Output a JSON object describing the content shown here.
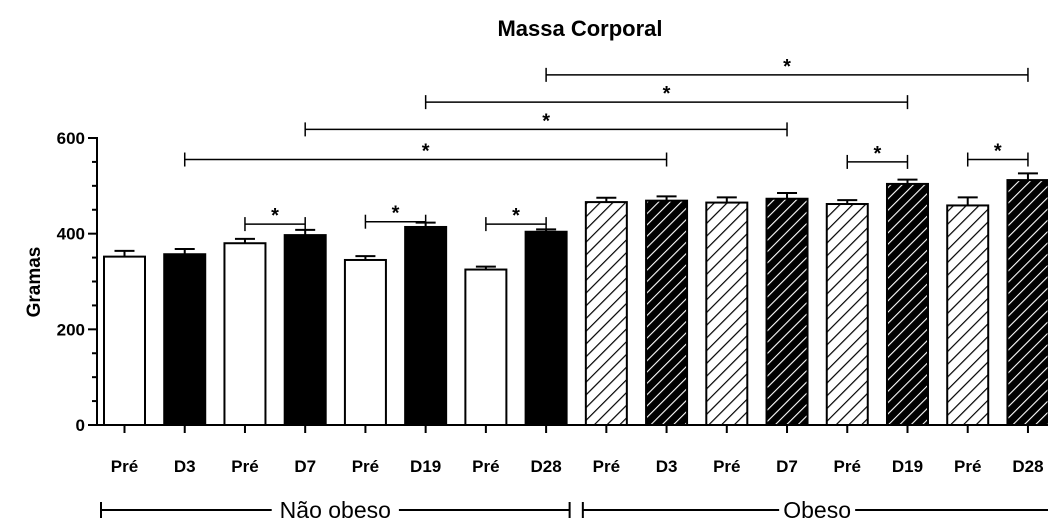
{
  "chart_data": {
    "type": "bar",
    "title": "Massa Corporal",
    "ylabel": "Gramas",
    "xlabel": "",
    "ylim": [
      0,
      600
    ],
    "yticks": [
      0,
      200,
      400,
      600
    ],
    "grid": false,
    "categories": [
      "Pré",
      "D3",
      "Pré",
      "D7",
      "Pré",
      "D19",
      "Pré",
      "D28",
      "Pré",
      "D3",
      "Pré",
      "D7",
      "Pré",
      "D19",
      "Pré",
      "D28"
    ],
    "values": [
      352,
      357,
      380,
      397,
      345,
      414,
      325,
      404,
      466,
      469,
      465,
      473,
      462,
      504,
      459,
      512
    ],
    "errors": [
      12,
      11,
      9,
      11,
      8,
      9,
      6,
      5,
      9,
      9,
      11,
      12,
      8,
      9,
      17,
      14
    ],
    "fill": [
      "open",
      "solid",
      "open",
      "solid",
      "open",
      "solid",
      "open",
      "solid",
      "hatched",
      "hatched-dark",
      "hatched",
      "hatched-dark",
      "hatched",
      "hatched-dark",
      "hatched",
      "hatched-dark"
    ],
    "groups": [
      {
        "label": "Não obeso",
        "from": 0,
        "to": 7
      },
      {
        "label": "Obeso",
        "from": 8,
        "to": 15
      }
    ],
    "significance": [
      {
        "from": 2,
        "to": 3,
        "label": "*",
        "level": 420
      },
      {
        "from": 4,
        "to": 5,
        "label": "*",
        "level": 425
      },
      {
        "from": 6,
        "to": 7,
        "label": "*",
        "level": 420
      },
      {
        "from": 12,
        "to": 13,
        "label": "*",
        "level": 550
      },
      {
        "from": 14,
        "to": 15,
        "label": "*",
        "level": 555
      },
      {
        "from": 1,
        "to": 9,
        "label": "*",
        "level": 555
      },
      {
        "from": 3,
        "to": 11,
        "label": "*",
        "level": 618
      },
      {
        "from": 5,
        "to": 13,
        "label": "*",
        "level": 675
      },
      {
        "from": 7,
        "to": 15,
        "label": "*",
        "level": 732
      }
    ]
  }
}
